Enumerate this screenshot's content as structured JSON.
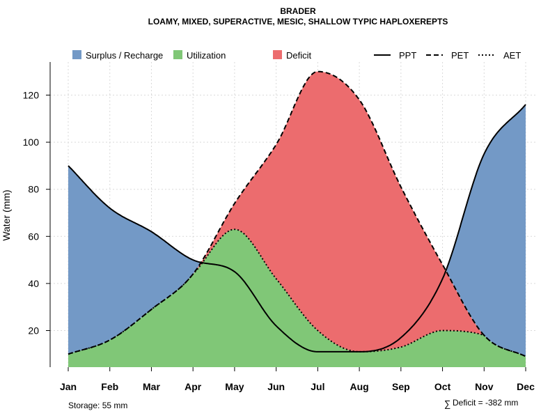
{
  "chart_data": {
    "type": "area",
    "title": "BRADER",
    "subtitle": "LOAMY, MIXED, SUPERACTIVE, MESIC, SHALLOW TYPIC HAPLOXEREPTS",
    "ylabel": "Water (mm)",
    "xlabel": "",
    "categories": [
      "Jan",
      "Feb",
      "Mar",
      "Apr",
      "May",
      "Jun",
      "Jul",
      "Aug",
      "Sep",
      "Oct",
      "Nov",
      "Dec"
    ],
    "ylim": [
      3,
      133
    ],
    "yticks": [
      20,
      40,
      60,
      80,
      100,
      120
    ],
    "grid": true,
    "series": [
      {
        "name": "PPT",
        "style": "solid",
        "values": [
          90,
          72,
          62,
          50,
          45,
          22,
          11,
          11,
          17,
          42,
          95,
          116
        ]
      },
      {
        "name": "PET",
        "style": "dashed",
        "values": [
          10,
          16,
          29,
          44,
          74,
          99,
          130,
          118,
          81,
          48,
          18,
          9
        ]
      },
      {
        "name": "AET",
        "style": "dotted",
        "values": [
          10,
          16,
          29,
          44,
          63,
          42,
          20,
          11,
          13,
          20,
          18,
          9
        ]
      }
    ],
    "legend": {
      "position": "top",
      "fills": [
        {
          "label": "Surplus / Recharge",
          "color": "#7399C6"
        },
        {
          "label": "Utilization",
          "color": "#80C777"
        },
        {
          "label": "Deficit",
          "color": "#EC6C6E"
        }
      ],
      "lines": [
        {
          "label": "PPT",
          "style": "solid"
        },
        {
          "label": "PET",
          "style": "dashed"
        },
        {
          "label": "AET",
          "style": "dotted"
        }
      ]
    },
    "annotations": {
      "storage": "Storage: 55 mm",
      "deficit_symbol": "∑",
      "deficit": "Deficit = -382 mm"
    },
    "colors": {
      "surplus": "#7399C6",
      "utilization": "#80C777",
      "deficit": "#EC6C6E"
    }
  }
}
